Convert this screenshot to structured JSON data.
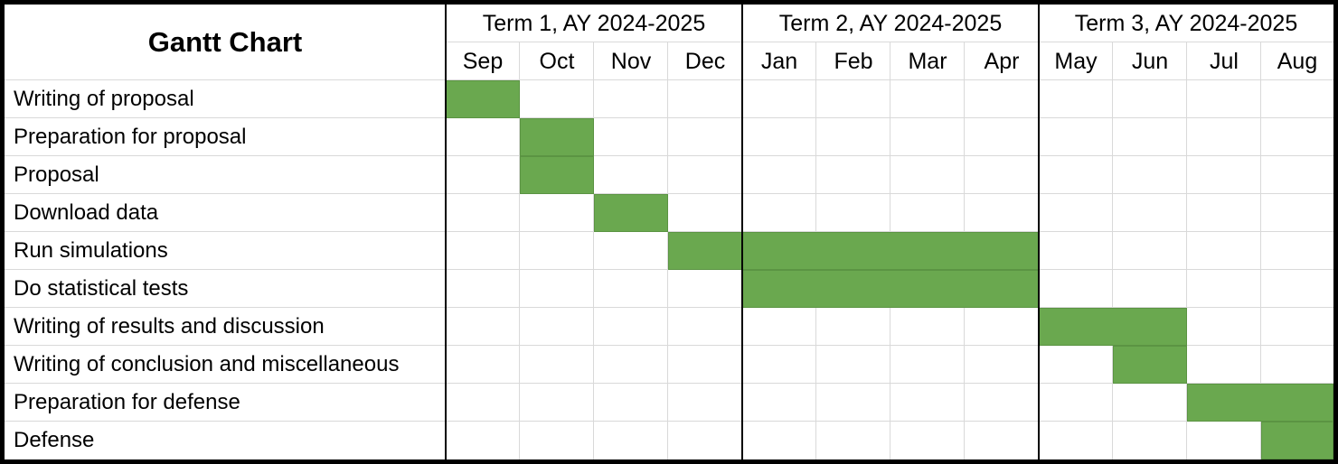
{
  "chart_data": {
    "type": "gantt",
    "title": "Gantt Chart",
    "terms": [
      {
        "label": "Term 1, AY 2024-2025",
        "months": [
          "Sep",
          "Oct",
          "Nov",
          "Dec"
        ]
      },
      {
        "label": "Term 2, AY 2024-2025",
        "months": [
          "Jan",
          "Feb",
          "Mar",
          "Apr"
        ]
      },
      {
        "label": "Term 3, AY 2024-2025",
        "months": [
          "May",
          "Jun",
          "Jul",
          "Aug"
        ]
      }
    ],
    "months": [
      "Sep",
      "Oct",
      "Nov",
      "Dec",
      "Jan",
      "Feb",
      "Mar",
      "Apr",
      "May",
      "Jun",
      "Jul",
      "Aug"
    ],
    "tasks": [
      {
        "name": "Writing of proposal",
        "start": "Sep",
        "end": "Sep"
      },
      {
        "name": "Preparation for proposal",
        "start": "Oct",
        "end": "Oct"
      },
      {
        "name": "Proposal",
        "start": "Oct",
        "end": "Oct"
      },
      {
        "name": "Download data",
        "start": "Nov",
        "end": "Nov"
      },
      {
        "name": "Run simulations",
        "start": "Dec",
        "end": "Apr"
      },
      {
        "name": "Do statistical tests",
        "start": "Jan",
        "end": "Apr"
      },
      {
        "name": "Writing of results and discussion",
        "start": "May",
        "end": "Jun"
      },
      {
        "name": "Writing of conclusion and miscellaneous",
        "start": "Jun",
        "end": "Jun"
      },
      {
        "name": "Preparation for defense",
        "start": "Jul",
        "end": "Aug"
      },
      {
        "name": "Defense",
        "start": "Aug",
        "end": "Aug"
      }
    ],
    "colors": {
      "bar": "#6aa84f",
      "bar_border": "#5b9443",
      "grid": "#d9d9d9",
      "divider": "#000000"
    }
  }
}
